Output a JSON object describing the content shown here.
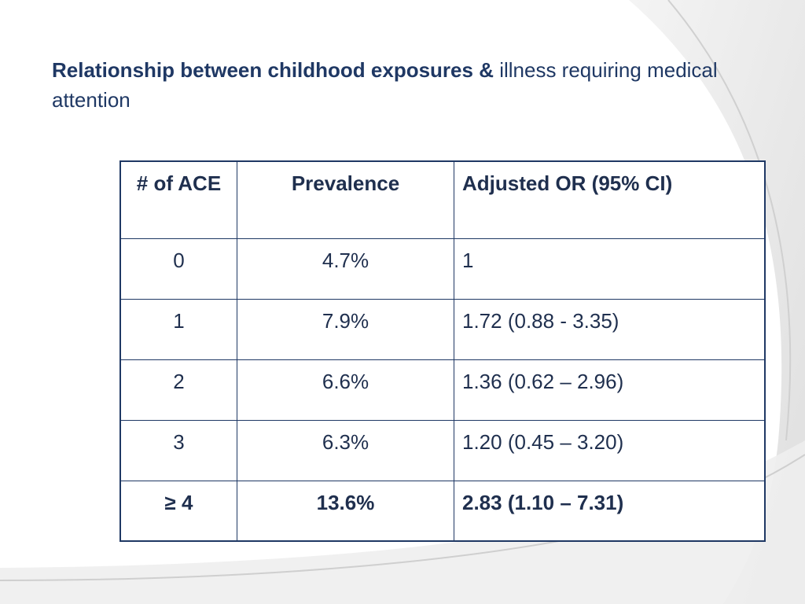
{
  "title": {
    "bold": "Relationship between childhood exposures &",
    "regular": " illness requiring medical attention"
  },
  "table": {
    "headers": [
      "# of ACE",
      "Prevalence",
      "Adjusted OR (95% CI)"
    ],
    "rows": [
      [
        "0",
        "4.7%",
        "1"
      ],
      [
        "1",
        "7.9%",
        "1.72 (0.88 - 3.35)"
      ],
      [
        "2",
        "6.6%",
        "1.36 (0.62 – 2.96)"
      ],
      [
        "3",
        "6.3%",
        "1.20 (0.45 – 3.20)"
      ],
      [
        "≥ 4",
        "13.6%",
        "2.83 (1.10 – 7.31)"
      ]
    ]
  },
  "colors": {
    "title": "#1f3864",
    "table_border": "#1f3864",
    "background_swoosh": "#e6e6e6"
  }
}
